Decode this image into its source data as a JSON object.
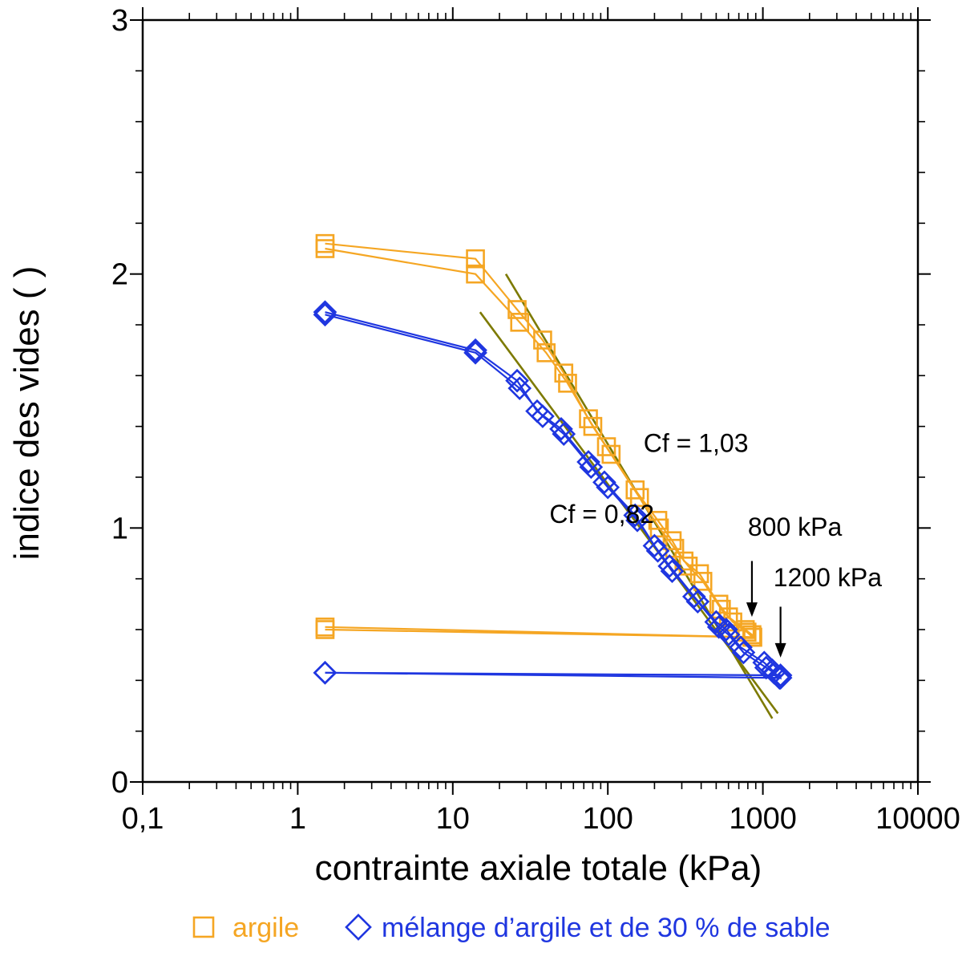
{
  "chart_data": {
    "type": "scatter",
    "xscale": "log",
    "xlim": [
      0.1,
      10000
    ],
    "ylim": [
      0,
      3
    ],
    "xlabel": "contrainte axiale totale (kPa)",
    "ylabel": "indice des vides ( )",
    "x_tick_labels": [
      "0,1",
      "1",
      "10",
      "100",
      "1000",
      "10000"
    ],
    "x_tick_values": [
      0.1,
      1,
      10,
      100,
      1000,
      10000
    ],
    "y_tick_labels": [
      "0",
      "1",
      "2",
      "3"
    ],
    "y_tick_values": [
      0,
      1,
      2,
      3
    ],
    "series": [
      {
        "name": "argile",
        "color": "#F5A623",
        "marker": "square",
        "runs": [
          {
            "x": [
              1.5,
              14,
              26,
              38,
              52,
              75,
              98,
              150,
              210,
              260,
              310,
              390,
              520,
              600,
              770,
              850,
              850,
              1.5
            ],
            "y": [
              2.12,
              2.06,
              1.86,
              1.74,
              1.61,
              1.43,
              1.32,
              1.15,
              1.03,
              0.95,
              0.87,
              0.82,
              0.7,
              0.65,
              0.6,
              0.58,
              0.57,
              0.6
            ]
          },
          {
            "x": [
              1.5,
              14,
              27,
              40,
              55,
              80,
              105,
              160,
              215,
              270,
              330,
              410,
              540,
              640,
              790,
              860,
              860,
              1.5
            ],
            "y": [
              2.1,
              2.0,
              1.81,
              1.69,
              1.57,
              1.4,
              1.29,
              1.12,
              1.0,
              0.92,
              0.85,
              0.79,
              0.68,
              0.63,
              0.59,
              0.57,
              0.57,
              0.61
            ]
          }
        ]
      },
      {
        "name": "mélange d’argile et de 30 % de sable",
        "color": "#1F36E0",
        "marker": "diamond",
        "runs": [
          {
            "x": [
              1.5,
              14,
              26,
              35,
              50,
              75,
              95,
              150,
              200,
              250,
              360,
              500,
              580,
              720,
              1020,
              1150,
              1280,
              1280,
              1.5
            ],
            "y": [
              1.85,
              1.7,
              1.58,
              1.46,
              1.39,
              1.26,
              1.18,
              1.05,
              0.93,
              0.85,
              0.73,
              0.63,
              0.6,
              0.53,
              0.47,
              0.44,
              0.41,
              0.41,
              0.43
            ]
          },
          {
            "x": [
              1.5,
              14,
              27,
              38,
              52,
              78,
              100,
              155,
              210,
              260,
              380,
              520,
              600,
              750,
              1050,
              1180,
              1300,
              1300,
              1.5
            ],
            "y": [
              1.84,
              1.69,
              1.55,
              1.44,
              1.37,
              1.24,
              1.16,
              1.03,
              0.91,
              0.83,
              0.71,
              0.61,
              0.58,
              0.51,
              0.45,
              0.43,
              0.41,
              0.42,
              0.43
            ]
          }
        ]
      }
    ],
    "fit_lines": [
      {
        "label": "Cf = 1,03",
        "color": "#7D7A00",
        "x": [
          22,
          1150
        ],
        "y": [
          2.0,
          0.25
        ]
      },
      {
        "label": "Cf = 0,82",
        "color": "#7D7A00",
        "x": [
          15,
          1250
        ],
        "y": [
          1.85,
          0.27
        ]
      }
    ],
    "annotations": [
      {
        "text": "Cf = 1,03",
        "x": 170,
        "y": 1.3
      },
      {
        "text": "Cf = 0,82",
        "x": 42,
        "y": 1.02
      },
      {
        "text": "800 kPa",
        "x": 800,
        "y": 0.97
      },
      {
        "text": "1200 kPa",
        "x": 1170,
        "y": 0.77
      }
    ],
    "arrows": [
      {
        "x": 850,
        "y_from": 0.87,
        "y_to": 0.65
      },
      {
        "x": 1300,
        "y_from": 0.69,
        "y_to": 0.49
      }
    ],
    "legend": [
      {
        "label": "argile",
        "color": "#F5A623",
        "marker": "square"
      },
      {
        "label": "mélange d’argile et de 30 % de sable",
        "color": "#1F36E0",
        "marker": "diamond"
      }
    ]
  }
}
